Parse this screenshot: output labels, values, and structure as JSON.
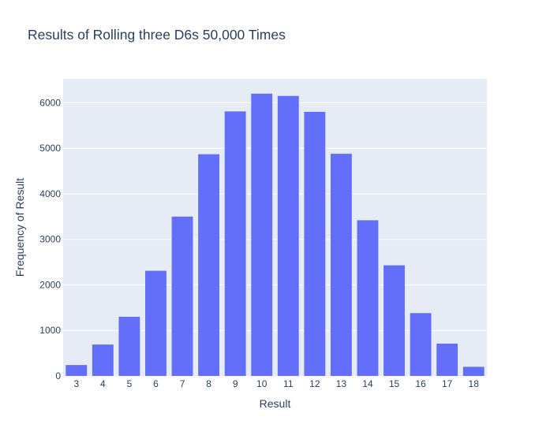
{
  "chart_data": {
    "type": "bar",
    "title": "Results of Rolling three D6s 50,000 Times",
    "xlabel": "Result",
    "ylabel": "Frequency of Result",
    "categories": [
      "3",
      "4",
      "5",
      "6",
      "7",
      "8",
      "9",
      "10",
      "11",
      "12",
      "13",
      "14",
      "15",
      "16",
      "17",
      "18"
    ],
    "values": [
      240,
      690,
      1300,
      2310,
      3500,
      4870,
      5810,
      6200,
      6150,
      5800,
      4880,
      3420,
      2430,
      1380,
      710,
      200
    ],
    "ylim": [
      0,
      6526
    ],
    "yticks": [
      0,
      1000,
      2000,
      3000,
      4000,
      5000,
      6000
    ],
    "grid": true,
    "legend": "none",
    "colors": {
      "bar": "#636efa",
      "plot_bg": "#e5ecf6",
      "grid": "#ffffff",
      "text": "#2a3f5f"
    }
  }
}
